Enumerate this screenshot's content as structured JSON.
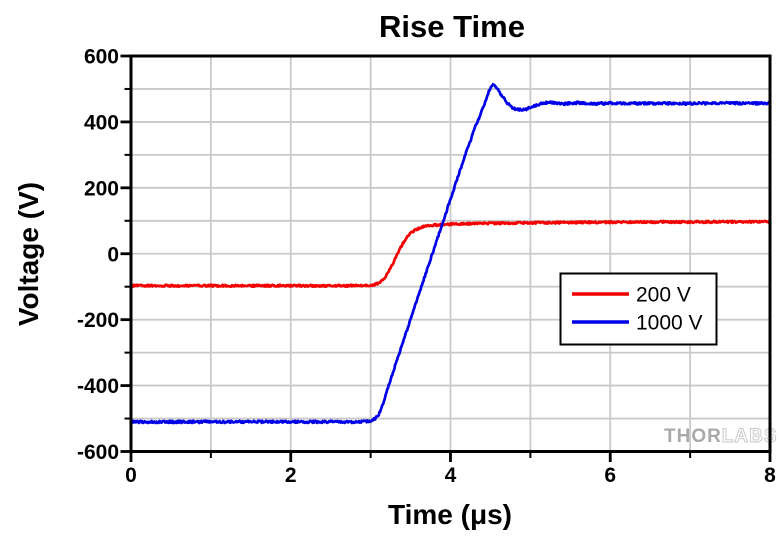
{
  "title": "Rise Time",
  "watermark": {
    "part1": "THOR",
    "part2": "LABS"
  },
  "chart_data": {
    "type": "line",
    "title": "Rise Time",
    "xlabel": "Time (μs)",
    "ylabel": "Voltage (V)",
    "xlim": [
      0,
      8
    ],
    "ylim": [
      -600,
      600
    ],
    "x_major_ticks": [
      0,
      2,
      4,
      6,
      8
    ],
    "x_minor_ticks": [
      1,
      3,
      5,
      7
    ],
    "y_major_ticks": [
      -600,
      -400,
      -200,
      0,
      200,
      400,
      600
    ],
    "y_minor_ticks": [
      -500,
      -300,
      -100,
      100,
      300,
      500
    ],
    "grid": {
      "show": true,
      "x_step": 1,
      "y_step": 100,
      "color": "#c9c9c9"
    },
    "legend": {
      "position": "inside right",
      "entries": [
        {
          "label": "200 V",
          "color": "#f40000"
        },
        {
          "label": "1000 V",
          "color": "#0000e8"
        }
      ]
    },
    "series": [
      {
        "name": "200 V",
        "color": "#f40000",
        "noise_v": 3,
        "points": [
          [
            0,
            -97
          ],
          [
            1,
            -97
          ],
          [
            2,
            -97
          ],
          [
            2.9,
            -97
          ],
          [
            2.95,
            -96.5
          ],
          [
            3,
            -95.5
          ],
          [
            3.05,
            -93.5
          ],
          [
            3.1,
            -89
          ],
          [
            3.15,
            -80
          ],
          [
            3.2,
            -65
          ],
          [
            3.25,
            -44
          ],
          [
            3.3,
            -19
          ],
          [
            3.35,
            7
          ],
          [
            3.4,
            30
          ],
          [
            3.45,
            48
          ],
          [
            3.5,
            62
          ],
          [
            3.55,
            71
          ],
          [
            3.6,
            77
          ],
          [
            3.65,
            81
          ],
          [
            3.7,
            84
          ],
          [
            3.8,
            87
          ],
          [
            3.9,
            88.5
          ],
          [
            4,
            90
          ],
          [
            4.2,
            91
          ],
          [
            4.5,
            92.5
          ],
          [
            5,
            94
          ],
          [
            5.5,
            95
          ],
          [
            6,
            96
          ],
          [
            7,
            96.5
          ],
          [
            8,
            97
          ]
        ]
      },
      {
        "name": "1000 V",
        "color": "#0000e8",
        "noise_v": 3.5,
        "points": [
          [
            0,
            -510
          ],
          [
            1,
            -510
          ],
          [
            2,
            -510
          ],
          [
            2.9,
            -510
          ],
          [
            2.95,
            -509
          ],
          [
            3,
            -507
          ],
          [
            3.05,
            -502
          ],
          [
            3.1,
            -488
          ],
          [
            3.15,
            -460
          ],
          [
            3.2,
            -418
          ],
          [
            3.3,
            -345
          ],
          [
            3.4,
            -272
          ],
          [
            3.5,
            -199
          ],
          [
            3.6,
            -126
          ],
          [
            3.7,
            -53
          ],
          [
            3.8,
            20
          ],
          [
            3.9,
            93
          ],
          [
            4,
            166
          ],
          [
            4.1,
            239
          ],
          [
            4.2,
            310
          ],
          [
            4.3,
            378
          ],
          [
            4.35,
            408
          ],
          [
            4.4,
            438
          ],
          [
            4.45,
            470
          ],
          [
            4.48,
            493
          ],
          [
            4.51,
            508
          ],
          [
            4.53,
            511
          ],
          [
            4.56,
            507
          ],
          [
            4.6,
            495
          ],
          [
            4.65,
            477
          ],
          [
            4.7,
            460
          ],
          [
            4.75,
            448
          ],
          [
            4.8,
            440
          ],
          [
            4.85,
            437
          ],
          [
            4.9,
            437
          ],
          [
            4.95,
            439
          ],
          [
            5,
            444
          ],
          [
            5.05,
            449
          ],
          [
            5.1,
            453
          ],
          [
            5.15,
            456
          ],
          [
            5.2,
            459
          ],
          [
            5.25,
            459
          ],
          [
            5.3,
            457
          ],
          [
            5.4,
            454
          ],
          [
            5.5,
            457
          ],
          [
            5.6,
            458
          ],
          [
            5.7,
            456
          ],
          [
            5.8,
            455
          ],
          [
            5.9,
            456
          ],
          [
            6,
            457
          ],
          [
            6.5,
            456
          ],
          [
            7,
            456
          ],
          [
            7.5,
            457
          ],
          [
            8,
            456
          ]
        ]
      }
    ]
  }
}
